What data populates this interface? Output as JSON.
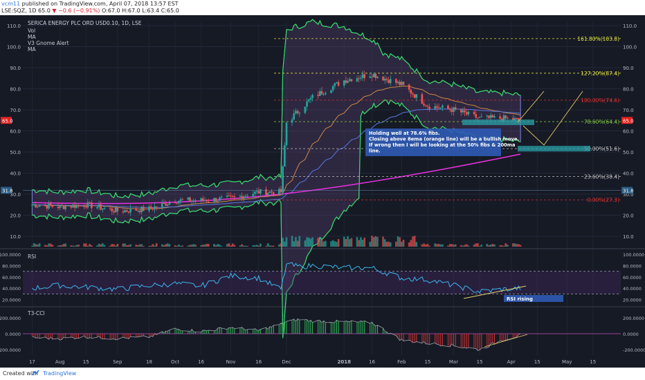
{
  "header": {
    "user": "vcm11",
    "published": " published on TradingView.com, April 07, 2018 13:57 EST",
    "symbol": "LSE:SQZ, 1D ",
    "price": "65.0 ",
    "change": "▼ −0.6 (−0.91%)",
    "ohlc": " O:67.0 H:67.0 L:63.4 C:65.0"
  },
  "chart": {
    "title": "SERICA ENERGY PLC ORD USD0.10, 1D, LSE",
    "indicators": [
      "Vol",
      "MA",
      "V3 Gnome Alert",
      "MA"
    ],
    "price_ticks": [
      "110.0",
      "100.0",
      "90.0",
      "80.0",
      "70.0",
      "60.0",
      "50.0",
      "40.0",
      "30.0",
      "20.0",
      "10.0"
    ],
    "price_tags": {
      "current": "65.0",
      "level": "31.8"
    },
    "fib_labels": [
      "161.80%(103.8)",
      "127.20%(87.4)",
      "100.00%(74.6)",
      "78.60%(64.4)",
      "50.00%(51.6)",
      "23.60%(38.4)",
      "0.00%(27.3)"
    ],
    "annotation": [
      "Holding well at 78.6% fibs.",
      "Closing above 8ema (orange line) will be a bullish move.",
      "If wrong then I will be looking at the 50% fibs & 200ma",
      "line."
    ],
    "rsi_label": "RSI",
    "rsi_ticks": [
      "100.0000",
      "80.0000",
      "60.0000",
      "40.0000",
      "20.0000"
    ],
    "rsi_note": "RSI rising",
    "cci_label": "T3-CCI",
    "cci_ticks": [
      "200.0000",
      "0.0000",
      "-200.0000"
    ],
    "x_ticks": [
      "17",
      "Aug",
      "15",
      "Sep",
      "18",
      "Oct",
      "16",
      "Nov",
      "16",
      "Dec",
      "2018",
      "16",
      "Feb",
      "15",
      "Mar",
      "15",
      "Apr",
      "15",
      "May",
      "15"
    ]
  },
  "chart_data": {
    "type": "line",
    "x": [
      "2017-07-17",
      "2017-08-01",
      "2017-08-15",
      "2017-09-01",
      "2017-09-18",
      "2017-10-02",
      "2017-10-16",
      "2017-11-01",
      "2017-11-16",
      "2017-11-28",
      "2017-12-01",
      "2017-12-08",
      "2017-12-15",
      "2018-01-01",
      "2018-01-16",
      "2018-02-01",
      "2018-02-15",
      "2018-03-01",
      "2018-03-15",
      "2018-03-27",
      "2018-04-06"
    ],
    "series": [
      {
        "name": "close",
        "values": [
          25,
          24,
          25,
          22,
          23,
          27,
          27,
          28,
          31,
          31,
          64,
          70,
          76,
          84,
          87,
          82,
          72,
          70,
          66,
          66,
          65
        ]
      }
    ],
    "fib_levels": [
      103.8,
      87.4,
      74.6,
      64.4,
      51.6,
      38.4,
      27.3
    ],
    "ma200": {
      "start": 26,
      "end": 49
    },
    "rsi": [
      40,
      45,
      42,
      38,
      45,
      48,
      44,
      62,
      58,
      38,
      82,
      78,
      80,
      76,
      76,
      58,
      55,
      45,
      34,
      38,
      40
    ],
    "cci": [
      -50,
      -60,
      -40,
      -60,
      -40,
      60,
      30,
      80,
      40,
      120,
      150,
      180,
      160,
      150,
      140,
      -80,
      -120,
      -150,
      -200,
      -80,
      -20
    ],
    "ylim": [
      0,
      115
    ],
    "colors": {
      "candle_up": "#26a69a",
      "candle_down": "#ef5350",
      "ema": "#d08a45",
      "ma200": "#e030d8",
      "ma_blue": "#5a7ae0",
      "bb_band": "#33dd66",
      "envelope": "#8088e8",
      "rsi_line": "#3ab8ee",
      "fib_mid": "#c0c0c0",
      "fib_red": "#e03030",
      "fib_green": "#80c040",
      "fib_yellow": "#e0e040",
      "note_box": "#2f5bb5",
      "tag_red": "#e22121",
      "tag_blue": "#2c5c82"
    }
  }
}
